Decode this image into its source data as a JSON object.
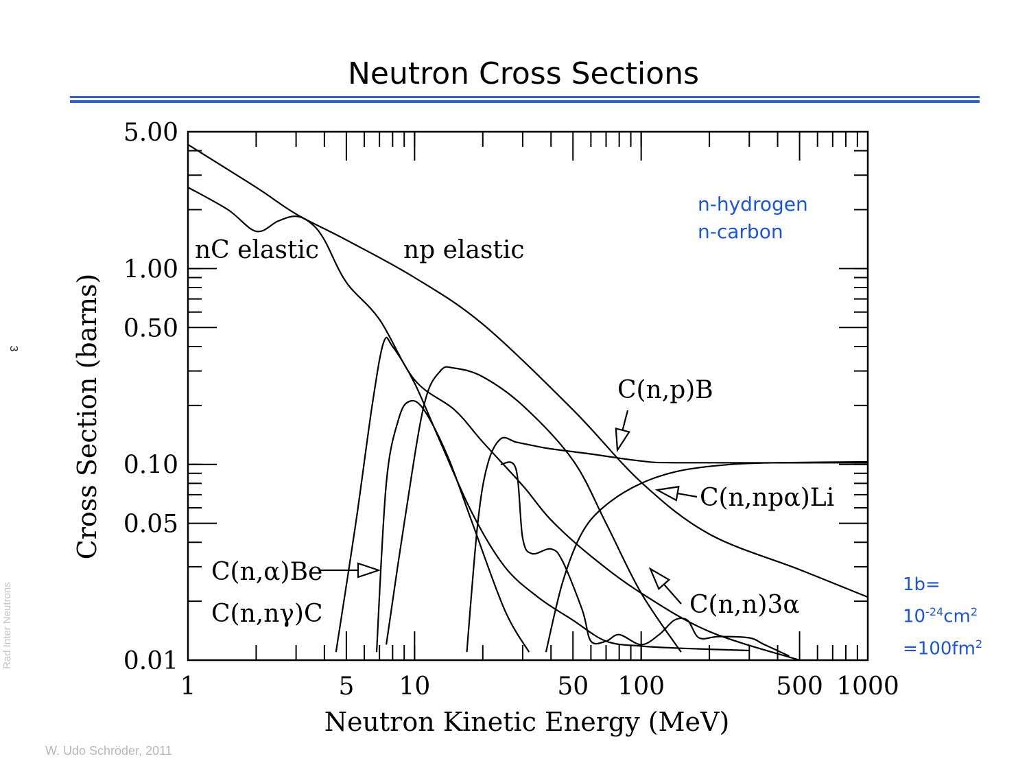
{
  "slide": {
    "title": "Neutron Cross Sections",
    "page_number": "3",
    "side_footer": "Rad Inter Neutrons",
    "author": "W. Udo Schröder, 2011"
  },
  "legend": {
    "line1": "n-hydrogen",
    "line2": "n-carbon",
    "color": "#1a53e6"
  },
  "unit_note": {
    "line1": "1b=",
    "line2_base": "10",
    "line2_exp": "-24",
    "line2_unit": "cm",
    "line2_unit_exp": "2",
    "line3_base": "=100fm",
    "line3_exp": "2"
  },
  "chart_data": {
    "type": "line",
    "xlabel": "Neutron Kinetic Energy (MeV)",
    "ylabel": "Cross Section (barns)",
    "xscale": "log",
    "yscale": "log",
    "xlim": [
      1,
      1000
    ],
    "ylim": [
      0.01,
      5.0
    ],
    "x_ticks": [
      "1",
      "5",
      "10",
      "50",
      "100",
      "500",
      "1000"
    ],
    "y_ticks": [
      "5.00",
      "1.00",
      "0.50",
      "0.10",
      "0.05",
      "0.01"
    ],
    "annotations": [
      "nC elastic",
      "np elastic",
      "C(n,p)B",
      "C(n,npα)Li",
      "C(n,α)Be",
      "C(n,nγ)C",
      "C(n,n)3α"
    ],
    "series": [
      {
        "name": "np elastic",
        "points": [
          [
            1,
            4.3
          ],
          [
            2,
            2.6
          ],
          [
            3,
            1.9
          ],
          [
            5,
            1.4
          ],
          [
            10,
            0.9
          ],
          [
            20,
            0.52
          ],
          [
            50,
            0.19
          ],
          [
            100,
            0.081
          ],
          [
            200,
            0.044
          ],
          [
            500,
            0.029
          ],
          [
            1000,
            0.021
          ]
        ]
      },
      {
        "name": "nC elastic",
        "points": [
          [
            1,
            2.6
          ],
          [
            1.5,
            2.0
          ],
          [
            2,
            1.55
          ],
          [
            2.5,
            1.75
          ],
          [
            3,
            1.85
          ],
          [
            3.5,
            1.7
          ],
          [
            4,
            1.4
          ],
          [
            5,
            0.85
          ],
          [
            7,
            0.55
          ],
          [
            10,
            0.27
          ],
          [
            15,
            0.19
          ],
          [
            20,
            0.13
          ],
          [
            30,
            0.078
          ],
          [
            40,
            0.052
          ],
          [
            60,
            0.034
          ],
          [
            100,
            0.022
          ],
          [
            200,
            0.014
          ],
          [
            500,
            0.01
          ]
        ]
      },
      {
        "name": "C(n,α)Be",
        "points": [
          [
            4.5,
            0.011
          ],
          [
            5.5,
            0.05
          ],
          [
            6.5,
            0.2
          ],
          [
            7.3,
            0.42
          ],
          [
            8,
            0.4
          ],
          [
            10,
            0.26
          ],
          [
            13,
            0.13
          ],
          [
            18,
            0.056
          ],
          [
            25,
            0.03
          ],
          [
            35,
            0.021
          ],
          [
            50,
            0.016
          ],
          [
            70,
            0.0125
          ],
          [
            100,
            0.0118
          ],
          [
            150,
            0.0115
          ],
          [
            300,
            0.0112
          ]
        ]
      },
      {
        "name": "C(n,nγ)C",
        "points": [
          [
            6.8,
            0.011
          ],
          [
            7.5,
            0.08
          ],
          [
            8.5,
            0.17
          ],
          [
            9.5,
            0.21
          ],
          [
            11,
            0.19
          ],
          [
            14,
            0.11
          ],
          [
            18,
            0.05
          ],
          [
            25,
            0.018
          ],
          [
            32,
            0.011
          ]
        ]
      },
      {
        "name": "C(n,p)B",
        "points": [
          [
            7.5,
            0.012
          ],
          [
            9,
            0.05
          ],
          [
            11,
            0.2
          ],
          [
            13,
            0.3
          ],
          [
            15,
            0.31
          ],
          [
            20,
            0.28
          ],
          [
            30,
            0.2
          ],
          [
            50,
            0.105
          ],
          [
            70,
            0.05
          ],
          [
            100,
            0.022
          ],
          [
            150,
            0.011
          ]
        ]
      },
      {
        "name": "C(n,n)3α",
        "points": [
          [
            17,
            0.011
          ],
          [
            19,
            0.05
          ],
          [
            21,
            0.1
          ],
          [
            24,
            0.135
          ],
          [
            28,
            0.13
          ],
          [
            33,
            0.125
          ],
          [
            40,
            0.12
          ],
          [
            60,
            0.113
          ],
          [
            100,
            0.104
          ],
          [
            150,
            0.102
          ],
          [
            1000,
            0.102
          ]
        ]
      },
      {
        "name": "C(n,npα)Li",
        "points": [
          [
            38,
            0.011
          ],
          [
            45,
            0.025
          ],
          [
            55,
            0.045
          ],
          [
            70,
            0.062
          ],
          [
            100,
            0.08
          ],
          [
            150,
            0.093
          ],
          [
            250,
            0.1
          ],
          [
            400,
            0.102
          ],
          [
            1000,
            0.103
          ]
        ]
      },
      {
        "name": "C(n,n)3α",
        "points": [
          [
            24,
            0.1
          ],
          [
            28,
            0.095
          ],
          [
            30,
            0.042
          ],
          [
            33,
            0.035
          ],
          [
            40,
            0.037
          ],
          [
            45,
            0.032
          ],
          [
            55,
            0.018
          ],
          [
            60,
            0.0125
          ],
          [
            70,
            0.0125
          ],
          [
            80,
            0.0135
          ],
          [
            100,
            0.012
          ],
          [
            120,
            0.0135
          ],
          [
            140,
            0.016
          ],
          [
            160,
            0.016
          ],
          [
            180,
            0.013
          ],
          [
            220,
            0.0132
          ],
          [
            300,
            0.013
          ],
          [
            350,
            0.012
          ],
          [
            450,
            0.0105
          ]
        ]
      }
    ]
  }
}
